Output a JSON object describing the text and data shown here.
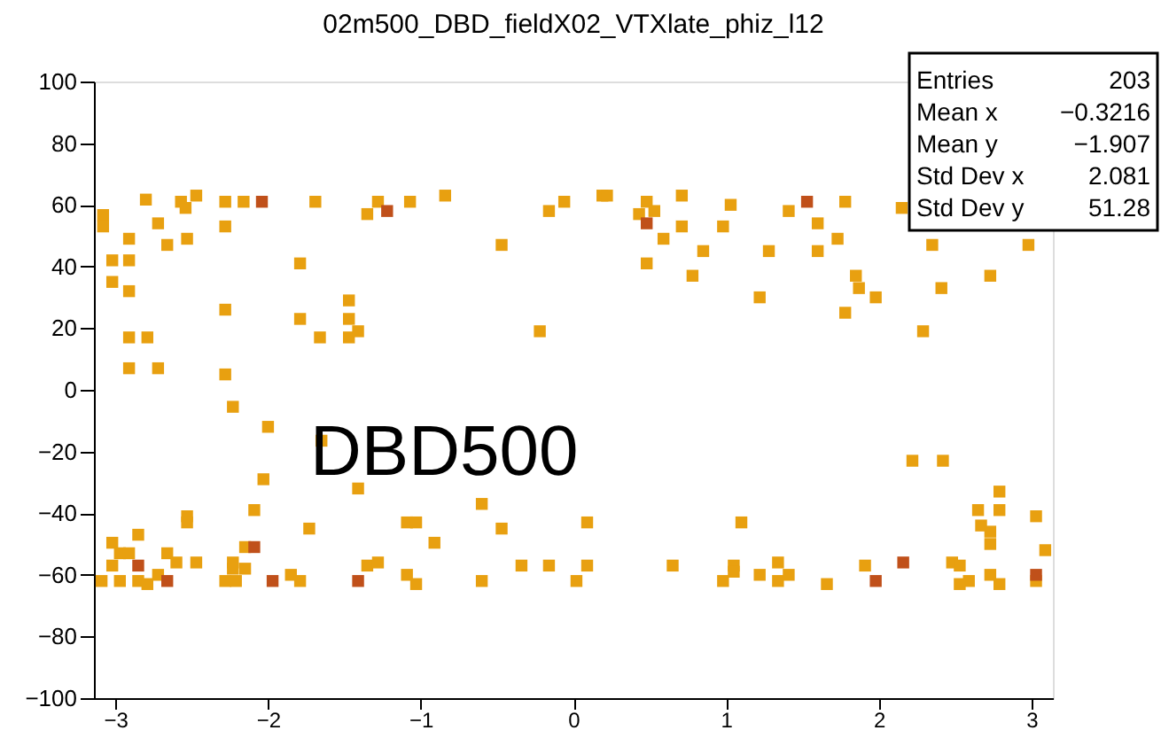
{
  "chart_data": {
    "type": "scatter",
    "title": "02m500_DBD_fieldX02_VTXlate_phiz_l12",
    "xlim": [
      -3.14,
      3.14
    ],
    "ylim": [
      -100,
      100
    ],
    "xticks": [
      -3,
      -2,
      -1,
      0,
      1,
      2,
      3
    ],
    "yticks": [
      -100,
      -80,
      -60,
      -40,
      -20,
      0,
      20,
      40,
      60,
      80,
      100
    ],
    "grid": false,
    "marker": "square",
    "series": [
      {
        "color": "#e8a010",
        "x": [
          -2.8,
          -2.57,
          -2.54,
          -2.47,
          -2.28,
          -2.16,
          -1.69,
          -1.28,
          -1.35,
          -1.07,
          -0.84,
          -0.16,
          -0.06,
          0.19,
          -3.08,
          -3.08,
          -2.72,
          -2.28,
          -2.91,
          -2.66,
          -2.53,
          -3.02,
          -2.91,
          -1.79,
          -0.47,
          -3.02,
          -2.91,
          -2.28,
          -1.47,
          -1.79,
          -1.47,
          -2.91,
          -2.79,
          -1.66,
          -1.47,
          -1.41,
          -0.22,
          -2.91,
          -2.72,
          -2.28,
          0.22,
          0.48,
          0.71,
          0.53,
          0.43,
          1.03,
          1.41,
          1.78,
          1.6,
          0.71,
          0.98,
          0.59,
          1.73,
          0.85,
          1.28,
          1.6,
          0.48,
          0.78,
          1.85,
          2.73,
          1.87,
          1.98,
          1.22,
          2.41,
          1.78,
          2.29,
          2.15,
          2.35,
          2.98,
          -2.23,
          -2.0,
          -1.65,
          2.22,
          2.42,
          2.67,
          -2.03,
          -1.41,
          -0.6,
          -2.53,
          -2.53,
          -2.09,
          -2.85,
          -1.73,
          -1.09,
          -1.03,
          -0.47,
          0.09,
          -3.02,
          -0.91,
          -2.97,
          -2.91,
          -2.66,
          -2.15,
          -2.6,
          -2.47,
          -3.02,
          -2.23,
          -2.23,
          -2.15,
          -1.35,
          -1.28,
          -0.34,
          -0.16,
          0.09,
          -3.09,
          -2.97,
          -2.85,
          -2.79,
          -2.72,
          -2.28,
          -2.21,
          -1.85,
          -1.79,
          -1.09,
          -1.03,
          -0.6,
          0.02,
          2.79,
          2.65,
          2.79,
          3.03,
          1.1,
          2.73,
          2.73,
          3.09,
          0.65,
          1.05,
          1.05,
          1.34,
          2.48,
          2.53,
          1.91,
          0.98,
          1.22,
          1.34,
          1.41,
          1.66,
          2.59,
          2.53,
          2.73,
          2.79,
          3.03
        ],
        "values": [
          61.7,
          61,
          59,
          63,
          61,
          61,
          61,
          61,
          57,
          61,
          63,
          58,
          61,
          63,
          56.7,
          53,
          54,
          53,
          49,
          47,
          49,
          42,
          42,
          41,
          47,
          35,
          32,
          26,
          29,
          23,
          23,
          17,
          17,
          17,
          17,
          19,
          19,
          7,
          7,
          5,
          63,
          61,
          63,
          58,
          57,
          60,
          58,
          61,
          54,
          53,
          53,
          49,
          49,
          45,
          45,
          45,
          41,
          37,
          37,
          37,
          33,
          30,
          30,
          33,
          25,
          19,
          59,
          47,
          47,
          -5.5,
          -12,
          -16.5,
          -23,
          -23,
          -44,
          -29,
          -32,
          -37,
          -41,
          -43,
          -39,
          -47,
          -45,
          -43,
          -43,
          -45,
          -43,
          -49.6,
          -49.6,
          -53,
          -53,
          -53,
          -51,
          -56,
          -56,
          -57,
          -56,
          -58,
          -58,
          -57,
          -56,
          -57,
          -57,
          -57,
          -62,
          -62,
          -62,
          -63,
          -60,
          -62,
          -62,
          -60,
          -62,
          -60,
          -63,
          -62,
          -62,
          -33,
          -39,
          -39,
          -41,
          -43,
          -46,
          -50,
          -52,
          -57,
          -57,
          -59,
          -56,
          -56,
          -57,
          -57,
          -62,
          -60,
          -62,
          -60,
          -63,
          -62,
          -63,
          -60,
          -63,
          -62
        ]
      },
      {
        "color": "#c0501a",
        "x": [
          -2.04,
          -1.22,
          0.48,
          1.53,
          -2.09,
          -2.85,
          -2.66,
          -1.97,
          -1.41,
          2.16,
          1.98,
          3.03
        ],
        "values": [
          61,
          58,
          54,
          61,
          -51,
          -57,
          -62,
          -62,
          -62,
          -56,
          -62,
          -60
        ]
      }
    ],
    "annotations": [
      "Entries 203",
      "Mean x −0.3216",
      "Mean y −1.907",
      "Std Dev x 2.081",
      "Std Dev y 51.28",
      "DBD500"
    ]
  }
}
